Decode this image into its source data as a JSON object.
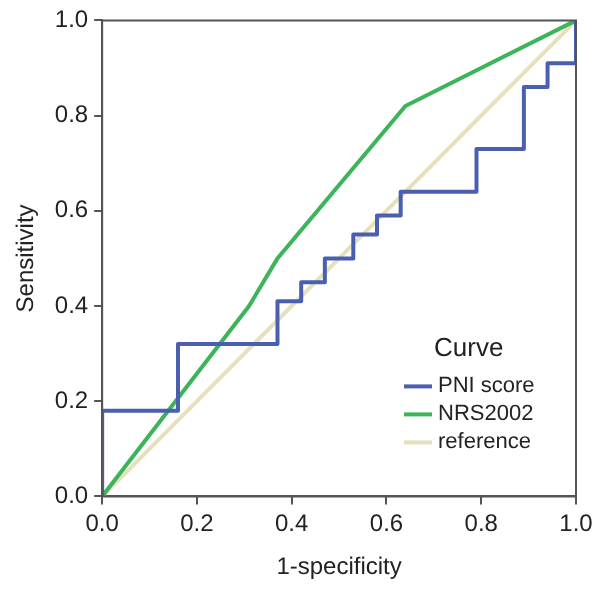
{
  "chart_data": {
    "type": "line",
    "xlabel": "1-specificity",
    "ylabel": "Sensitivity",
    "legend_title": "Curve",
    "legend": "bottom right",
    "grid": false,
    "marker": "none",
    "line_style": "solid",
    "xlim": [
      0,
      1
    ],
    "ylim": [
      0,
      1
    ],
    "xticks": [
      {
        "value": 0,
        "label": "0.0"
      },
      {
        "value": 0.2,
        "label": "0.2"
      },
      {
        "value": 0.4,
        "label": "0.4"
      },
      {
        "value": 0.6,
        "label": "0.6"
      },
      {
        "value": 0.8,
        "label": "0.8"
      },
      {
        "value": 1,
        "label": "1.0"
      }
    ],
    "yticks": [
      {
        "value": 0,
        "label": "0.0"
      },
      {
        "value": 0.2,
        "label": "0.2"
      },
      {
        "value": 0.4,
        "label": "0.4"
      },
      {
        "value": 0.6,
        "label": "0.6"
      },
      {
        "value": 0.8,
        "label": "0.8"
      },
      {
        "value": 1,
        "label": "1.0"
      }
    ],
    "series": [
      {
        "name": "PNI score",
        "color": "#4a5fb0",
        "x": [
          0,
          0,
          0.16,
          0.16,
          0.37,
          0.37,
          0.42,
          0.42,
          0.47,
          0.47,
          0.53,
          0.53,
          0.58,
          0.58,
          0.63,
          0.63,
          0.79,
          0.79,
          0.89,
          0.89,
          0.94,
          0.94,
          1,
          1
        ],
        "values": [
          0,
          0.18,
          0.18,
          0.32,
          0.32,
          0.41,
          0.41,
          0.45,
          0.45,
          0.5,
          0.5,
          0.55,
          0.55,
          0.59,
          0.59,
          0.64,
          0.64,
          0.73,
          0.73,
          0.86,
          0.86,
          0.91,
          0.91,
          1
        ]
      },
      {
        "name": "NRS2002",
        "color": "#3cb45a",
        "x": [
          0,
          0.31,
          0.37,
          0.64,
          1
        ],
        "values": [
          0,
          0.4,
          0.5,
          0.82,
          1
        ]
      },
      {
        "name": "reference",
        "color": "#e6e0bc",
        "x": [
          0,
          1
        ],
        "values": [
          0,
          1
        ]
      }
    ]
  }
}
